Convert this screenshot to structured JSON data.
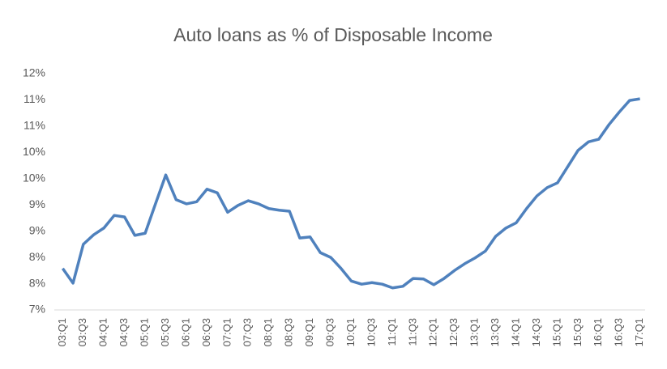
{
  "chart_data": {
    "type": "line",
    "title": "Auto loans as % of Disposable Income",
    "categories": [
      "03:Q1",
      null,
      "03:Q3",
      null,
      "04:Q1",
      null,
      "04:Q3",
      null,
      "05:Q1",
      null,
      "05:Q3",
      null,
      "06:Q1",
      null,
      "06:Q3",
      null,
      "07:Q1",
      null,
      "07:Q3",
      null,
      "08:Q1",
      null,
      "08:Q3",
      null,
      "09:Q1",
      null,
      "09:Q3",
      null,
      "10:Q1",
      null,
      "10:Q3",
      null,
      "11:Q1",
      null,
      "11:Q3",
      null,
      "12:Q1",
      null,
      "12:Q3",
      null,
      "13:Q1",
      null,
      "13:Q3",
      null,
      "14:Q1",
      null,
      "14:Q3",
      null,
      "15:Q1",
      null,
      "15:Q3",
      null,
      "16:Q1",
      null,
      "16:Q3",
      null,
      "17:Q1"
    ],
    "series": [
      {
        "name": "Auto loans as % of Disposable Income",
        "color": "#4f81bd",
        "values": [
          7.79,
          7.51,
          8.25,
          8.43,
          8.56,
          8.8,
          8.77,
          8.42,
          8.46,
          9.02,
          9.57,
          9.1,
          9.02,
          9.06,
          9.3,
          9.23,
          8.86,
          8.99,
          9.08,
          9.02,
          8.93,
          8.9,
          8.88,
          8.37,
          8.39,
          8.09,
          8.0,
          7.79,
          7.55,
          7.49,
          7.52,
          7.49,
          7.42,
          7.45,
          7.6,
          7.59,
          7.48,
          7.6,
          7.75,
          7.88,
          7.99,
          8.12,
          8.4,
          8.56,
          8.66,
          8.93,
          9.17,
          9.33,
          9.42,
          9.73,
          10.04,
          10.2,
          10.25,
          10.53,
          10.77,
          10.99,
          11.02
        ]
      }
    ],
    "ylim": [
      7,
      11.5
    ],
    "yticks": [
      {
        "value": 7,
        "label": "7%"
      },
      {
        "value": 7.5,
        "label": "8%"
      },
      {
        "value": 8,
        "label": "8%"
      },
      {
        "value": 8.5,
        "label": "9%"
      },
      {
        "value": 9,
        "label": "9%"
      },
      {
        "value": 9.5,
        "label": "10%"
      },
      {
        "value": 10,
        "label": "10%"
      },
      {
        "value": 10.5,
        "label": "11%"
      },
      {
        "value": 11,
        "label": "11%"
      },
      {
        "value": 11.5,
        "label": "12%"
      }
    ],
    "grid": false
  }
}
